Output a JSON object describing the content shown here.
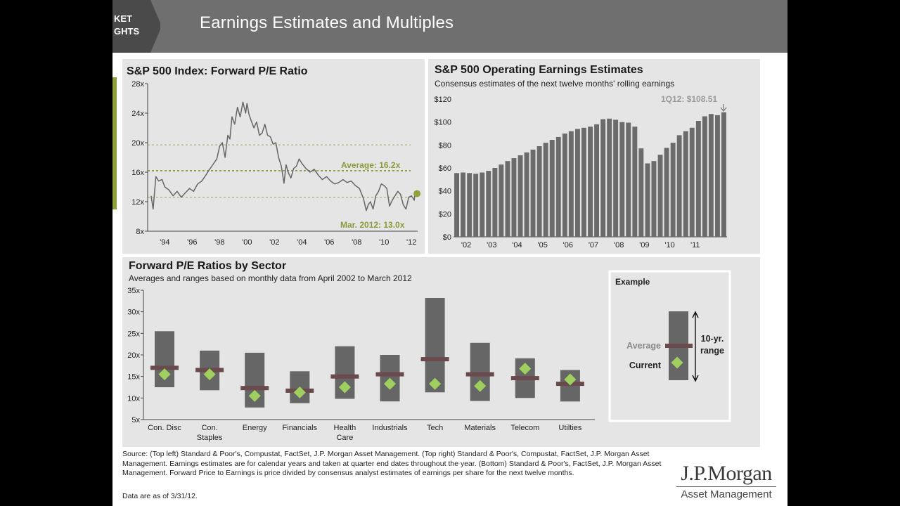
{
  "header": {
    "title": "Earnings Estimates and Multiples",
    "tab_line1": "KET",
    "tab_line2": "GHTS"
  },
  "colors": {
    "header_bg": "#6f6f6f",
    "accent_green": "#8da23a",
    "bar_gray": "#6b6b6b",
    "range_bar": "#666666",
    "average_mark": "#6a4a4c",
    "current_marker": "#9fcf5f",
    "panel_bg": "#e5e5e5"
  },
  "chart_data": [
    {
      "type": "line",
      "title": "S&P 500 Index: Forward P/E Ratio",
      "ylim": [
        8,
        28
      ],
      "y_ticks": [
        "8x",
        "12x",
        "16x",
        "20x",
        "24x",
        "28x"
      ],
      "y_tick_values": [
        8,
        12,
        16,
        20,
        24,
        28
      ],
      "x_ticks": [
        "'94",
        "'96",
        "'98",
        "'00",
        "'02",
        "'04",
        "'06",
        "'08",
        "'10",
        "'12"
      ],
      "x_tick_values": [
        1994,
        1996,
        1998,
        2000,
        2002,
        2004,
        2006,
        2008,
        2010,
        2012
      ],
      "xlim": [
        1992.75,
        2012.45
      ],
      "series": [
        {
          "x": [
            1993.0,
            1993.15,
            1993.35,
            1993.55,
            1993.8,
            1994.0,
            1994.3,
            1994.6,
            1994.9,
            1995.2,
            1995.5,
            1995.8,
            1996.1,
            1996.4,
            1996.7,
            1997.0,
            1997.2,
            1997.5,
            1997.8,
            1998.0,
            1998.2,
            1998.4,
            1998.6,
            1998.75,
            1998.9,
            1999.1,
            1999.3,
            1999.5,
            1999.7,
            1999.9,
            2000.0,
            2000.15,
            2000.3,
            2000.5,
            2000.7,
            2000.9,
            2001.1,
            2001.3,
            2001.5,
            2001.7,
            2001.9,
            2002.1,
            2002.3,
            2002.5,
            2002.7,
            2002.85,
            2003.0,
            2003.2,
            2003.4,
            2003.6,
            2003.8,
            2004.0,
            2004.3,
            2004.6,
            2004.9,
            2005.2,
            2005.5,
            2005.8,
            2006.1,
            2006.4,
            2006.7,
            2007.0,
            2007.3,
            2007.6,
            2007.9,
            2008.2,
            2008.5,
            2008.7,
            2008.85,
            2009.0,
            2009.2,
            2009.4,
            2009.6,
            2009.8,
            2010.0,
            2010.2,
            2010.4,
            2010.6,
            2010.8,
            2011.0,
            2011.2,
            2011.4,
            2011.6,
            2011.8,
            2012.0,
            2012.2,
            2012.25
          ],
          "y": [
            12.8,
            11.0,
            15.4,
            14.8,
            15.0,
            14.0,
            13.6,
            12.8,
            13.4,
            12.6,
            13.2,
            13.8,
            13.4,
            14.4,
            14.8,
            15.6,
            16.2,
            17.0,
            17.8,
            19.5,
            20.0,
            18.0,
            21.0,
            20.5,
            23.5,
            22.5,
            24.8,
            23.5,
            25.5,
            24.0,
            25.3,
            23.8,
            23.0,
            22.0,
            22.8,
            21.0,
            21.3,
            22.5,
            21.0,
            20.8,
            19.8,
            20.0,
            18.0,
            16.8,
            14.5,
            17.0,
            16.0,
            15.2,
            16.5,
            16.8,
            17.8,
            17.2,
            16.5,
            16.0,
            16.4,
            15.6,
            15.0,
            15.4,
            14.8,
            14.4,
            14.6,
            15.0,
            14.6,
            14.8,
            14.2,
            13.8,
            12.4,
            10.8,
            11.6,
            12.0,
            11.0,
            12.8,
            13.4,
            14.4,
            14.2,
            13.8,
            11.4,
            12.2,
            12.8,
            13.4,
            13.0,
            11.6,
            11.0,
            12.6,
            12.8,
            12.2,
            13.0
          ]
        }
      ],
      "reference_lines": [
        {
          "label": "Average: 16.2x",
          "value": 16.2
        },
        {
          "value": 19.7
        },
        {
          "value": 12.6
        }
      ],
      "current_point": {
        "x": 2012.25,
        "y": 13.0
      },
      "annotation": "Mar. 2012: 13.0x"
    },
    {
      "type": "bar",
      "title": "S&P 500 Operating Earnings Estimates",
      "subtitle": "Consensus estimates of the next twelve months' rolling earnings",
      "ylim": [
        0,
        120
      ],
      "y_ticks": [
        "$0",
        "$20",
        "$40",
        "$60",
        "$80",
        "$100",
        "$120"
      ],
      "y_tick_values": [
        0,
        20,
        40,
        60,
        80,
        100,
        120
      ],
      "x_ticks": [
        "'02",
        "'03",
        "'04",
        "'05",
        "'06",
        "'07",
        "'08",
        "'09",
        "'10",
        "'11"
      ],
      "annotation": "1Q12: $108.51",
      "values": [
        55.5,
        56,
        55.5,
        55,
        56,
        57.5,
        60,
        63,
        66,
        68.5,
        71,
        73.5,
        76,
        79,
        82,
        84.5,
        87,
        90,
        92,
        94,
        95,
        96,
        98,
        102.5,
        103,
        102,
        100,
        99.5,
        96,
        77,
        64,
        66,
        71.5,
        77.5,
        82,
        88.5,
        92,
        95,
        101,
        105,
        107,
        106,
        108.51
      ]
    },
    {
      "type": "bar",
      "title": "Forward P/E Ratios by Sector",
      "subtitle": "Averages and ranges based on monthly data from April 2002 to March 2012",
      "ylim": [
        5,
        35
      ],
      "y_ticks": [
        "5x",
        "10x",
        "15x",
        "20x",
        "25x",
        "30x",
        "35x"
      ],
      "y_tick_values": [
        5,
        10,
        15,
        20,
        25,
        30,
        35
      ],
      "categories": [
        [
          "Con. Disc"
        ],
        [
          "Con.",
          "Staples"
        ],
        [
          "Energy"
        ],
        [
          "Financials"
        ],
        [
          "Health",
          "Care"
        ],
        [
          "Industrials"
        ],
        [
          "Tech"
        ],
        [
          "Materials"
        ],
        [
          "Telecom"
        ],
        [
          "Utilties"
        ]
      ],
      "series": [
        {
          "name": "10-yr. range",
          "low": [
            12.5,
            11.8,
            7.8,
            8.8,
            9.8,
            9.2,
            11.3,
            9.3,
            10.0,
            9.2
          ],
          "high": [
            25.5,
            21.0,
            20.5,
            16.2,
            22.0,
            20.0,
            33.2,
            22.8,
            19.2,
            16.5
          ]
        },
        {
          "name": "Average",
          "values": [
            17.0,
            16.5,
            12.3,
            11.7,
            15.0,
            15.5,
            19.0,
            15.5,
            14.6,
            13.3
          ]
        },
        {
          "name": "Current",
          "values": [
            15.5,
            15.5,
            10.5,
            11.3,
            12.5,
            13.3,
            13.3,
            12.8,
            16.8,
            14.3
          ]
        }
      ]
    }
  ],
  "example": {
    "title": "Example",
    "average_label": "Average",
    "current_label": "Current",
    "range_label_1": "10-yr.",
    "range_label_2": "range"
  },
  "source_text": "Source: (Top left) Standard & Poor's, Compustat, FactSet, J.P. Morgan Asset Management. (Top right) Standard & Poor's, Compustat, FactSet, J.P. Morgan Asset Management. Earnings estimates are for calendar years and taken at quarter end dates throughout the year. (Bottom) Standard & Poor's, FactSet, J.P. Morgan Asset Management. Forward Price to Earnings is price divided by consensus analyst estimates of earnings per share for the next twelve months.",
  "as_of": "Data are as of 3/31/12.",
  "logo": {
    "name": "J.P.Morgan",
    "sub": "Asset Management"
  }
}
